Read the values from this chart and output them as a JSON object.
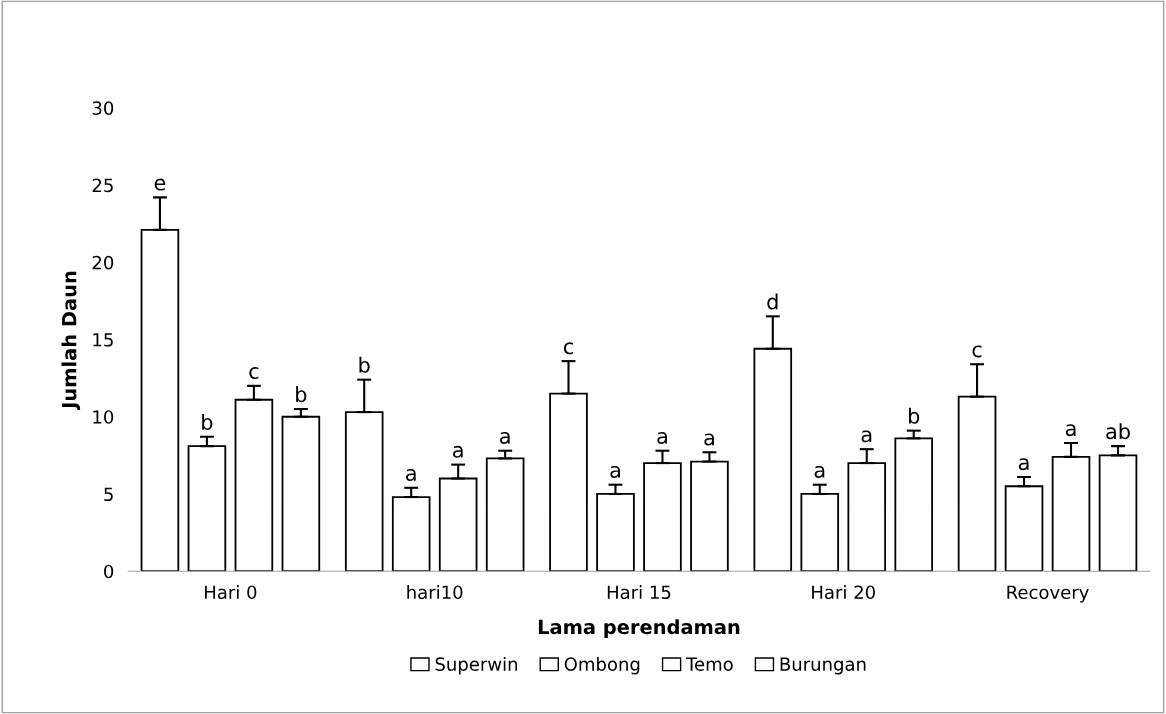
{
  "chart_data": {
    "type": "bar",
    "xlabel": "Lama perendaman",
    "ylabel": "Jumlah Daun",
    "categories": [
      "Hari 0",
      "hari10",
      "Hari 15",
      "Hari 20",
      "Recovery"
    ],
    "ylim": [
      0,
      30
    ],
    "yticks": [
      0,
      5,
      10,
      15,
      20,
      25,
      30
    ],
    "grid": false,
    "legend": "bottom",
    "series": [
      {
        "name": "Superwin",
        "color": "#ffffff",
        "values": [
          22.1,
          10.3,
          11.5,
          14.4,
          11.3
        ],
        "errors": [
          [
            22.1,
            24.2
          ],
          [
            10.3,
            12.4
          ],
          [
            11.5,
            13.6
          ],
          [
            14.4,
            16.5
          ],
          [
            11.3,
            13.4
          ]
        ],
        "value_labels": [
          "e",
          "b",
          "c",
          "d",
          "c"
        ]
      },
      {
        "name": "Ombong",
        "color": "#ffffff",
        "values": [
          8.1,
          4.8,
          5.0,
          5.0,
          5.5
        ],
        "errors": [
          [
            8.1,
            8.7
          ],
          [
            4.8,
            5.4
          ],
          [
            5.0,
            5.6
          ],
          [
            5.0,
            5.6
          ],
          [
            5.5,
            6.1
          ]
        ],
        "value_labels": [
          "b",
          "a",
          "a",
          "a",
          "a"
        ]
      },
      {
        "name": "Temo",
        "color": "#ffffff",
        "values": [
          11.1,
          6.0,
          7.0,
          7.0,
          7.4
        ],
        "errors": [
          [
            11.1,
            12.0
          ],
          [
            6.0,
            6.9
          ],
          [
            7.0,
            7.8
          ],
          [
            7.0,
            7.9
          ],
          [
            7.4,
            8.3
          ]
        ],
        "value_labels": [
          "c",
          "a",
          "a",
          "a",
          "a"
        ]
      },
      {
        "name": "Burungan",
        "color": "#ffffff",
        "values": [
          10.0,
          7.3,
          7.1,
          8.6,
          7.5
        ],
        "errors": [
          [
            10.0,
            10.5
          ],
          [
            7.3,
            7.8
          ],
          [
            7.1,
            7.7
          ],
          [
            8.6,
            9.1
          ],
          [
            7.5,
            8.1
          ]
        ],
        "value_labels": [
          "b",
          "a",
          "a",
          "b",
          "ab"
        ]
      }
    ]
  }
}
